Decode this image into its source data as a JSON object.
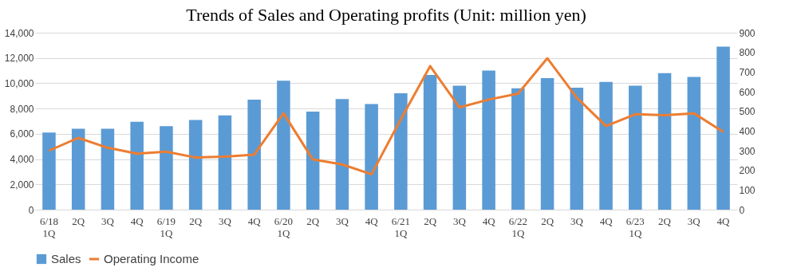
{
  "chart_data": {
    "type": "bar",
    "title": "Trends of Sales and Operating profits (Unit: million yen)",
    "categories": [
      "6/18 1Q",
      "2Q",
      "3Q",
      "4Q",
      "6/19 1Q",
      "2Q",
      "3Q",
      "4Q",
      "6/20 1Q",
      "2Q",
      "3Q",
      "4Q",
      "6/21 1Q",
      "2Q",
      "3Q",
      "4Q",
      "6/22 1Q",
      "2Q",
      "3Q",
      "4Q",
      "6/23 1Q",
      "2Q",
      "3Q",
      "4Q"
    ],
    "series": [
      {
        "name": "Sales",
        "color": "#5b9bd5",
        "values": [
          6100,
          6400,
          6400,
          6950,
          6600,
          7100,
          7450,
          8700,
          10200,
          7750,
          8750,
          8350,
          9200,
          10650,
          9800,
          11000,
          9600,
          10400,
          9650,
          10100,
          9800,
          10800,
          10500,
          12900
        ]
      },
      {
        "name": "Operating Income",
        "type": "line",
        "axis": "y2",
        "color": "#ed7d31",
        "values": [
          300,
          365,
          315,
          285,
          295,
          265,
          270,
          280,
          490,
          255,
          230,
          180,
          460,
          730,
          520,
          560,
          590,
          770,
          570,
          425,
          485,
          480,
          490,
          395
        ]
      }
    ],
    "ylim": [
      0,
      14000
    ],
    "yticks": [
      0,
      {
        "value": 2000,
        "label": "2,000"
      },
      {
        "value": 4000,
        "label": "4,000"
      },
      {
        "value": 6000,
        "label": "6,000"
      },
      {
        "value": 8000,
        "label": "8,000"
      },
      {
        "value": 10000,
        "label": "10,000"
      },
      {
        "value": 12000,
        "label": "12,000"
      },
      {
        "value": 14000,
        "label": "14,000"
      }
    ],
    "y2lim": [
      0,
      900
    ],
    "y2ticks": [
      0,
      100,
      200,
      300,
      400,
      500,
      600,
      700,
      800,
      900
    ],
    "grid": "y",
    "legend": "bottom",
    "marker": "none",
    "line_style": "solid"
  }
}
